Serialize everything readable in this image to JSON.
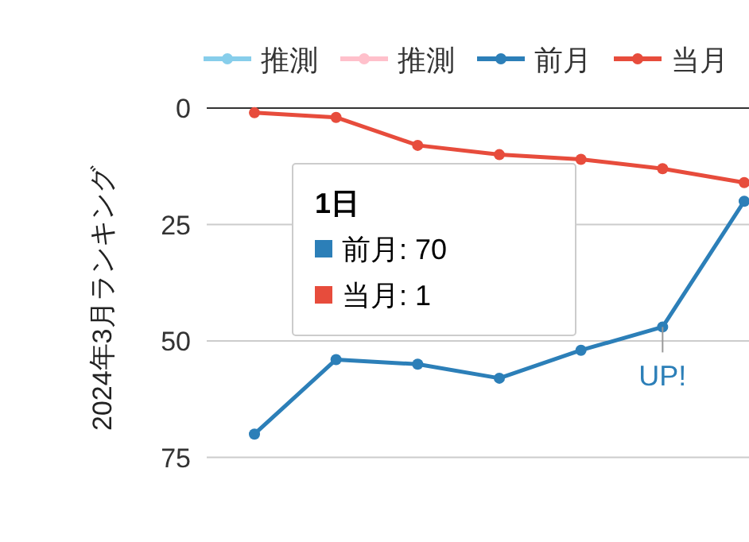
{
  "chart_data": {
    "type": "line",
    "ylabel": "2024年3月ランキング",
    "categories": [
      null,
      null,
      null,
      null,
      null,
      null,
      null
    ],
    "ylim": [
      75,
      0
    ],
    "yticks": [
      0,
      25,
      50,
      75
    ],
    "grid": "y",
    "legend": "top",
    "marker": "circle",
    "line_style": "solid",
    "tick_labels": "y",
    "series": [
      {
        "name": "推測",
        "color": "#87ceeb",
        "values": [
          null,
          null,
          null,
          null,
          null,
          null,
          null
        ]
      },
      {
        "name": "推測",
        "color": "#ffc0cb",
        "values": [
          null,
          null,
          null,
          null,
          null,
          null,
          null
        ]
      },
      {
        "name": "前月",
        "color": "#2c7fb8",
        "values": [
          70,
          54,
          55,
          58,
          52,
          47,
          20
        ]
      },
      {
        "name": "当月",
        "color": "#e74c3c",
        "values": [
          1,
          2,
          8,
          10,
          11,
          13,
          16
        ]
      }
    ],
    "annotations": [
      "1日",
      "前月: 70",
      "当月: 1",
      {
        "text": "UP!",
        "y": 47
      }
    ]
  }
}
